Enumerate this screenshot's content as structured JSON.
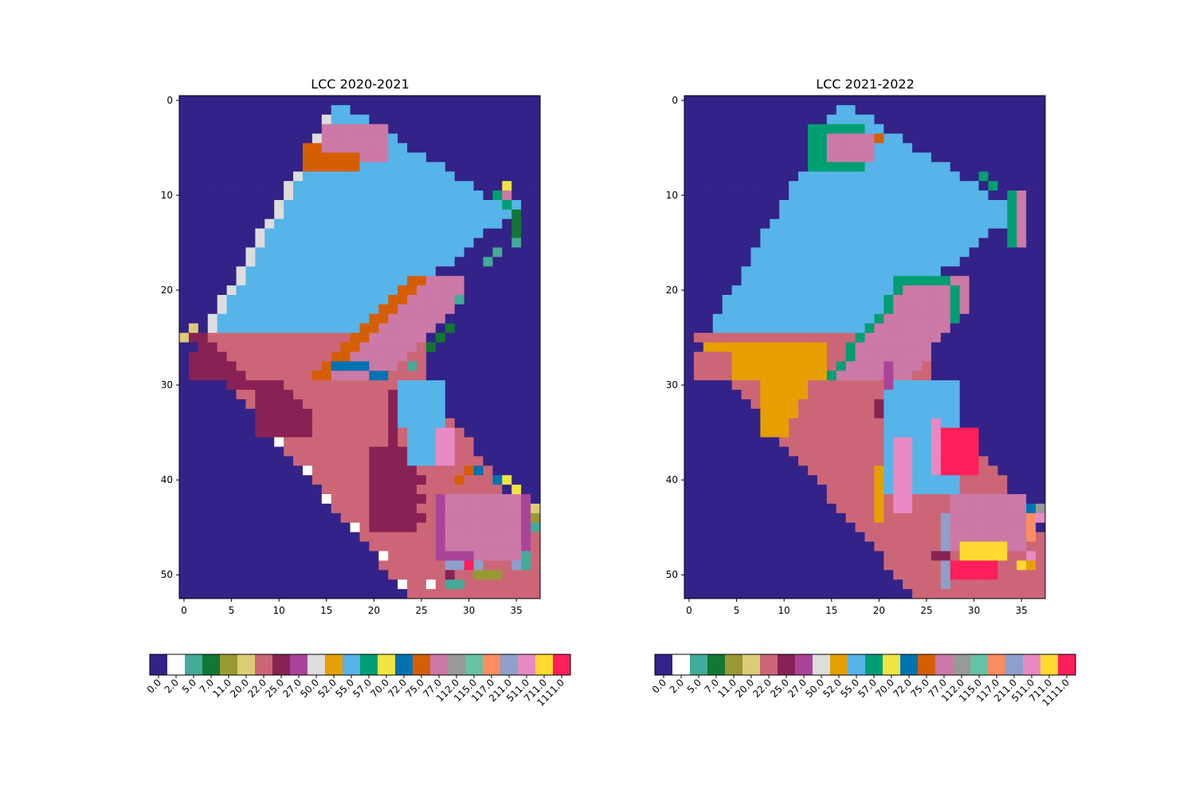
{
  "chart_data": [
    {
      "type": "heatmap",
      "title": "LCC 2020-2021",
      "x_ticks": [
        "0",
        "5",
        "10",
        "15",
        "20",
        "25",
        "30",
        "35"
      ],
      "y_ticks": [
        "0",
        "10",
        "20",
        "30",
        "40",
        "50"
      ],
      "xlim": [
        -0.5,
        37.5
      ],
      "ylim": [
        52.5,
        -0.5
      ],
      "grid": false,
      "class_grid_size": [
        38,
        53
      ],
      "dominant_classes": {
        "background": "0.0",
        "upper_blob": "55.0",
        "upper_core": "77.0",
        "lower_blob": "22.0",
        "lower_core": "77.0",
        "edge_rim": "50.0"
      },
      "colorbar": {
        "orientation": "horizontal",
        "labels": [
          "0.0",
          "2.0",
          "5.0",
          "7.0",
          "11.0",
          "20.0",
          "22.0",
          "25.0",
          "27.0",
          "50.0",
          "52.0",
          "55.0",
          "57.0",
          "70.0",
          "72.0",
          "75.0",
          "77.0",
          "112.0",
          "115.0",
          "117.0",
          "211.0",
          "511.0",
          "711.0",
          "1111.0"
        ]
      }
    },
    {
      "type": "heatmap",
      "title": "LCC 2021-2022",
      "x_ticks": [
        "0",
        "5",
        "10",
        "15",
        "20",
        "25",
        "30",
        "35"
      ],
      "y_ticks": [
        "0",
        "10",
        "20",
        "30",
        "40",
        "50"
      ],
      "xlim": [
        -0.5,
        37.5
      ],
      "ylim": [
        52.5,
        -0.5
      ],
      "grid": false,
      "class_grid_size": [
        38,
        53
      ],
      "dominant_classes": {
        "background": "0.0",
        "upper_blob": "55.0",
        "upper_core": "77.0",
        "lower_blob": "22.0",
        "lower_core": "77.0",
        "mid_band": "52.0"
      },
      "colorbar": {
        "orientation": "horizontal",
        "labels": [
          "0.0",
          "2.0",
          "5.0",
          "7.0",
          "11.0",
          "20.0",
          "22.0",
          "25.0",
          "27.0",
          "50.0",
          "52.0",
          "55.0",
          "57.0",
          "70.0",
          "72.0",
          "75.0",
          "77.0",
          "112.0",
          "115.0",
          "117.0",
          "211.0",
          "511.0",
          "711.0",
          "1111.0"
        ]
      }
    }
  ],
  "palette": {
    "0.0": "#332288",
    "2.0": "#ffffff",
    "5.0": "#44aa99",
    "7.0": "#117733",
    "11.0": "#999933",
    "20.0": "#ddcc77",
    "22.0": "#cc6677",
    "25.0": "#882255",
    "27.0": "#aa4499",
    "50.0": "#dddddd",
    "52.0": "#e69f00",
    "55.0": "#56b4e9",
    "57.0": "#009e73",
    "70.0": "#f0e442",
    "72.0": "#0072b2",
    "75.0": "#d55e00",
    "77.0": "#cc79a7",
    "112.0": "#999999",
    "115.0": "#66c2a5",
    "117.0": "#fc8d62",
    "211.0": "#8da0cb",
    "511.0": "#e78ac3",
    "711.0": "#ffd92f",
    "1111.0": "#ff1f5b"
  }
}
